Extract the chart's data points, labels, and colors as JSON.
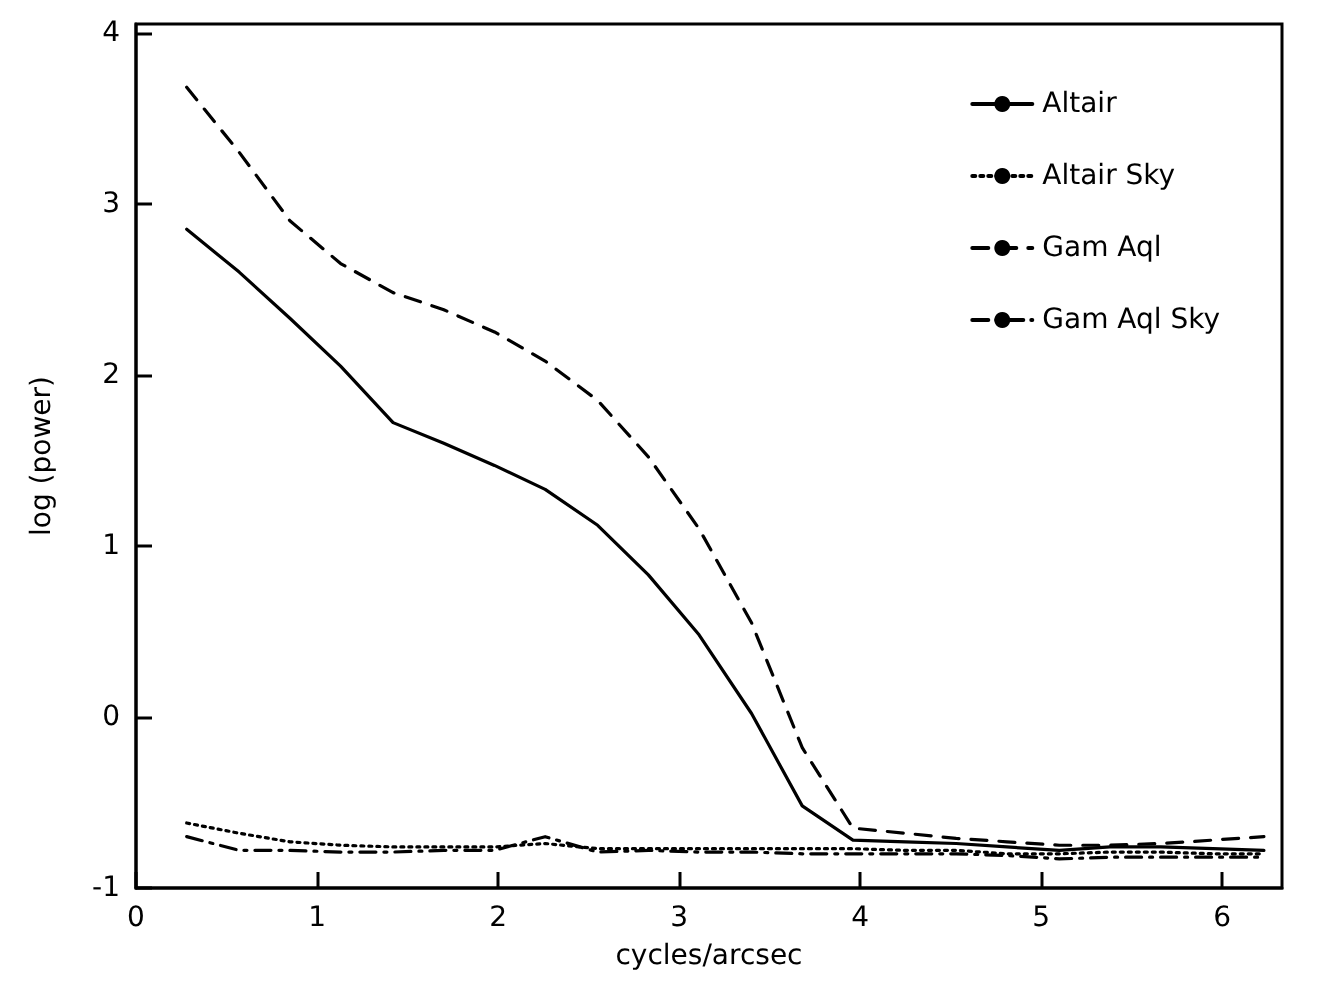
{
  "chart_data": {
    "type": "line",
    "xlabel": "cycles/arcsec",
    "ylabel": "log (power)",
    "x": [
      0.28,
      0.57,
      0.85,
      1.13,
      1.42,
      1.7,
      1.98,
      2.26,
      2.55,
      2.83,
      3.11,
      3.4,
      3.68,
      3.96,
      4.25,
      4.53,
      4.81,
      5.1,
      5.38,
      5.66,
      5.95,
      6.23
    ],
    "series": [
      {
        "name": "Altair",
        "color": "#000000",
        "line_style": "solid",
        "values": [
          2.85,
          2.6,
          2.33,
          2.05,
          1.72,
          1.6,
          1.47,
          1.33,
          1.12,
          0.83,
          0.48,
          0.02,
          -0.52,
          -0.72,
          -0.73,
          -0.74,
          -0.76,
          -0.78,
          -0.76,
          -0.76,
          -0.77,
          -0.78
        ]
      },
      {
        "name": "Altair Sky",
        "color": "#000000",
        "line_style": "dotted",
        "values": [
          -0.62,
          -0.68,
          -0.73,
          -0.75,
          -0.76,
          -0.76,
          -0.76,
          -0.74,
          -0.77,
          -0.77,
          -0.77,
          -0.77,
          -0.77,
          -0.77,
          -0.78,
          -0.78,
          -0.8,
          -0.8,
          -0.79,
          -0.79,
          -0.8,
          -0.8
        ]
      },
      {
        "name": "Gam Aql",
        "color": "#000000",
        "line_style": "dashed",
        "values": [
          3.68,
          3.3,
          2.9,
          2.65,
          2.48,
          2.38,
          2.25,
          2.08,
          1.85,
          1.52,
          1.1,
          0.55,
          -0.18,
          -0.65,
          -0.68,
          -0.71,
          -0.73,
          -0.75,
          -0.75,
          -0.74,
          -0.72,
          -0.7
        ]
      },
      {
        "name": "Gam Aql Sky",
        "color": "#000000",
        "line_style": "dashdot",
        "values": [
          -0.7,
          -0.78,
          -0.78,
          -0.79,
          -0.79,
          -0.78,
          -0.78,
          -0.7,
          -0.79,
          -0.78,
          -0.79,
          -0.79,
          -0.8,
          -0.8,
          -0.8,
          -0.8,
          -0.81,
          -0.83,
          -0.82,
          -0.82,
          -0.82,
          -0.82
        ]
      }
    ],
    "xlim": [
      0,
      6.33
    ],
    "xticks": [
      0,
      1,
      2,
      3,
      4,
      5,
      6
    ],
    "ylim": [
      -1,
      4.05
    ],
    "yticks": [
      -1,
      0,
      1,
      2,
      3,
      4
    ],
    "grid": false,
    "legend": "top right",
    "marker": "none"
  }
}
